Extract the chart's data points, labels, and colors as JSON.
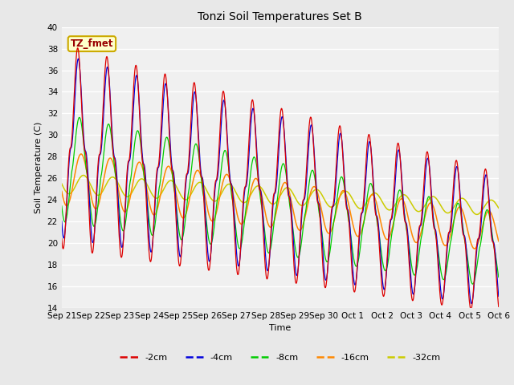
{
  "title": "Tonzi Soil Temperatures Set B",
  "xlabel": "Time",
  "ylabel": "Soil Temperature (C)",
  "ylim": [
    14,
    40
  ],
  "yticks": [
    14,
    16,
    18,
    20,
    22,
    24,
    26,
    28,
    30,
    32,
    34,
    36,
    38,
    40
  ],
  "annotation_text": "TZ_fmet",
  "annotation_bg": "#ffffcc",
  "annotation_border": "#ccaa00",
  "annotation_fg": "#990000",
  "colors": {
    "-2cm": "#dd0000",
    "-4cm": "#0000dd",
    "-8cm": "#00cc00",
    "-16cm": "#ff8800",
    "-32cm": "#cccc00"
  },
  "legend_labels": [
    "-2cm",
    "-4cm",
    "-8cm",
    "-16cm",
    "-32cm"
  ],
  "x_tick_labels": [
    "Sep 21",
    "Sep 22",
    "Sep 23",
    "Sep 24",
    "Sep 25",
    "Sep 26",
    "Sep 27",
    "Sep 28",
    "Sep 29",
    "Sep 30",
    "Oct 1",
    "Oct 2",
    "Oct 3",
    "Oct 4",
    "Oct 5",
    "Oct 6"
  ],
  "bg_color": "#e8e8e8",
  "plot_bg": "#f0f0f0",
  "figsize": [
    6.4,
    4.8
  ],
  "dpi": 100
}
